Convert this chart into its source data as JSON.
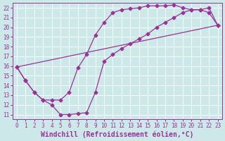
{
  "xlabel": "Windchill (Refroidissement éolien,°C)",
  "background_color": "#cce8e8",
  "grid_color": "#ffffff",
  "line_color": "#993399",
  "xlim": [
    -0.5,
    23.5
  ],
  "ylim": [
    10.5,
    22.5
  ],
  "xticks": [
    0,
    1,
    2,
    3,
    4,
    5,
    6,
    7,
    8,
    9,
    10,
    11,
    12,
    13,
    14,
    15,
    16,
    17,
    18,
    19,
    20,
    21,
    22,
    23
  ],
  "yticks": [
    11,
    12,
    13,
    14,
    15,
    16,
    17,
    18,
    19,
    20,
    21,
    22
  ],
  "line1_x": [
    0,
    1,
    2,
    3,
    4,
    5,
    6,
    7,
    8,
    9,
    10,
    11,
    12,
    13,
    14,
    15,
    16,
    17,
    18,
    19,
    20,
    21,
    22,
    23
  ],
  "line1_y": [
    15.9,
    14.5,
    13.3,
    12.5,
    12.0,
    11.0,
    11.0,
    11.1,
    11.2,
    13.3,
    16.5,
    17.2,
    17.8,
    18.3,
    18.8,
    19.3,
    20.0,
    20.5,
    21.0,
    21.5,
    21.8,
    21.8,
    22.0,
    20.2
  ],
  "line2_x": [
    0,
    1,
    2,
    3,
    4,
    5,
    6,
    7,
    8,
    9,
    10,
    11,
    12,
    13,
    14,
    15,
    16,
    17,
    18,
    19,
    20,
    21,
    22,
    23
  ],
  "line2_y": [
    15.9,
    14.5,
    13.3,
    12.5,
    12.5,
    12.5,
    13.3,
    15.8,
    17.2,
    19.2,
    20.5,
    21.5,
    21.8,
    21.9,
    22.0,
    22.2,
    22.2,
    22.2,
    22.3,
    22.0,
    21.8,
    21.8,
    21.5,
    20.2
  ],
  "line3_x": [
    0,
    23
  ],
  "line3_y": [
    15.9,
    20.2
  ],
  "marker": "D",
  "markersize": 2.5,
  "linewidth": 0.9,
  "xlabel_fontsize": 7,
  "tick_fontsize": 5.5,
  "fig_bg": "#cce8e8"
}
